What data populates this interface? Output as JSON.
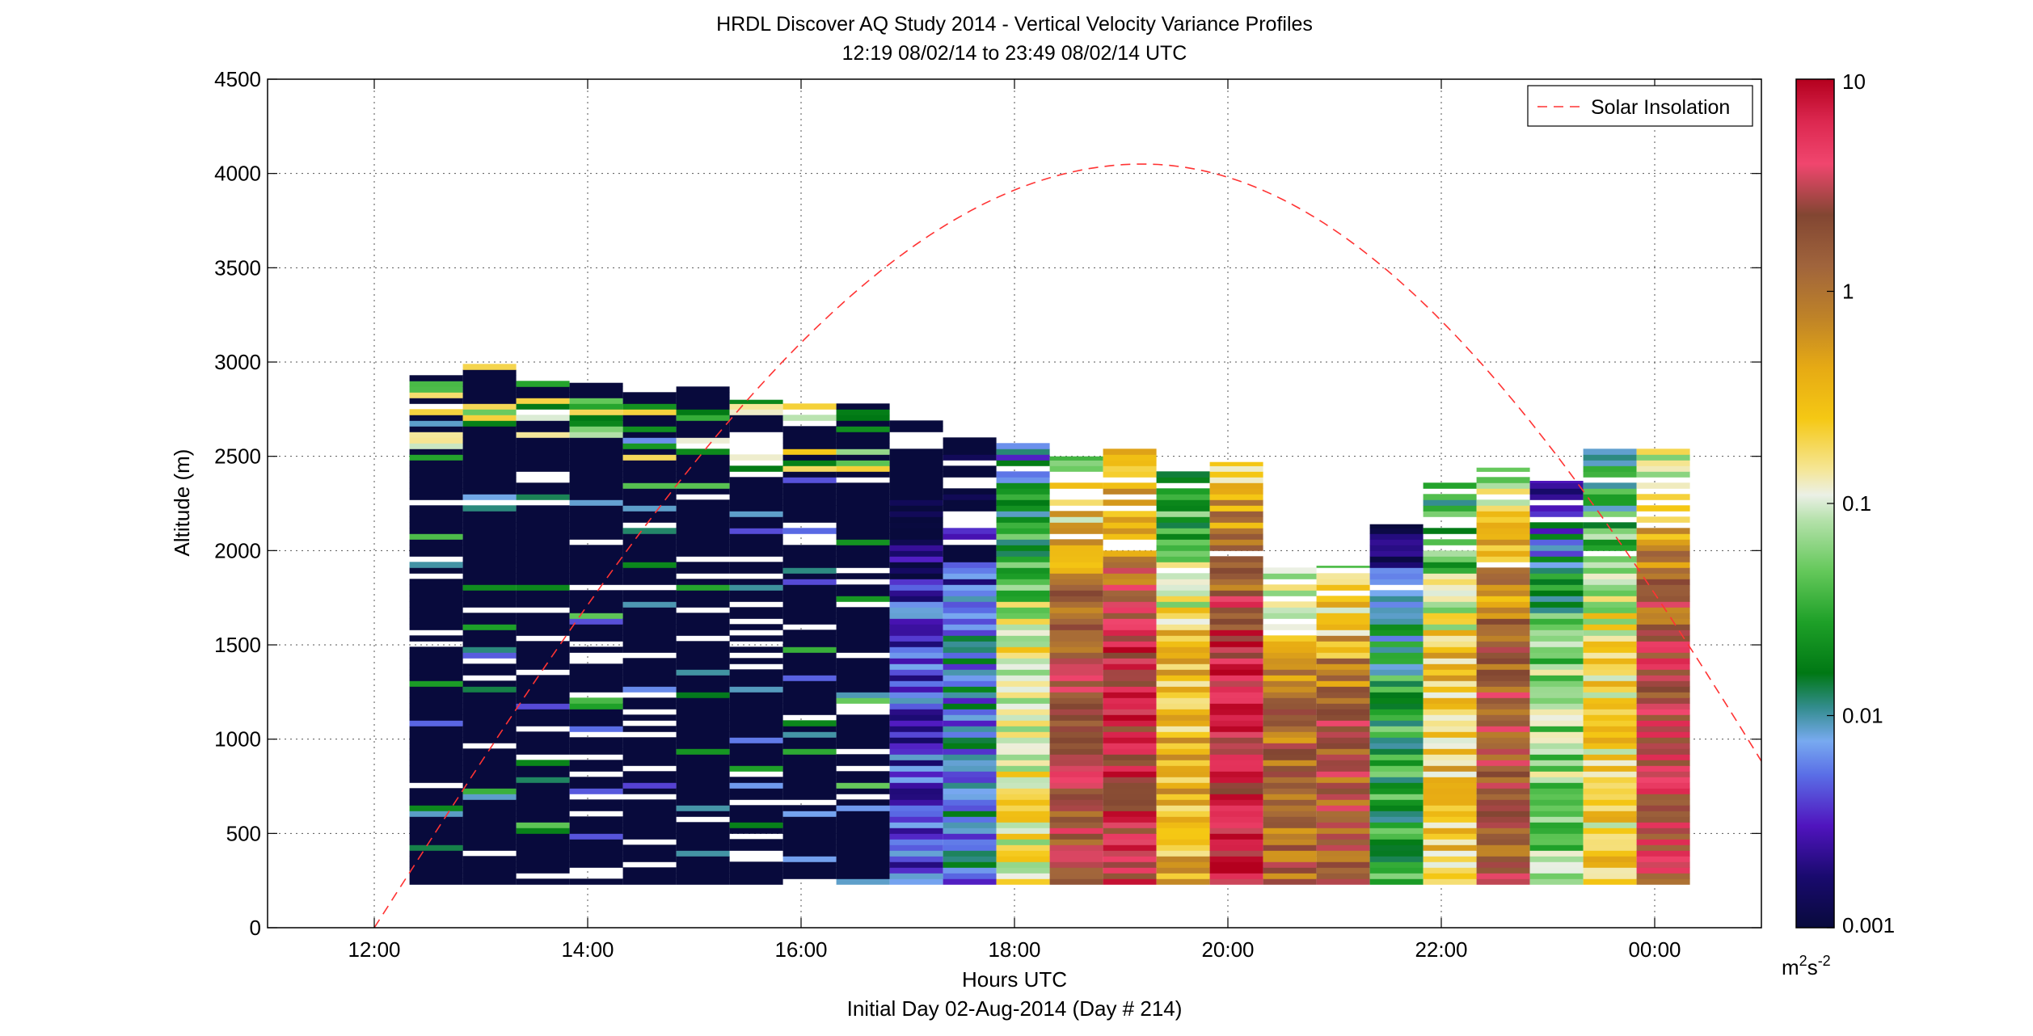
{
  "chart_data": {
    "type": "heatmap",
    "title": "HRDL Discover AQ Study 2014 - Vertical Velocity Variance Profiles",
    "subtitle": "12:19 08/02/14 to 23:49 08/02/14  UTC",
    "xlabel": "Hours UTC",
    "xlabel2": "Initial Day 02-Aug-2014 (Day # 214)",
    "ylabel": "Altitude (m)",
    "xlim": [
      11,
      25
    ],
    "ylim": [
      0,
      4500
    ],
    "x_ticks": [
      {
        "value": 12,
        "label": "12:00"
      },
      {
        "value": 14,
        "label": "14:00"
      },
      {
        "value": 16,
        "label": "16:00"
      },
      {
        "value": 18,
        "label": "18:00"
      },
      {
        "value": 20,
        "label": "20:00"
      },
      {
        "value": 22,
        "label": "22:00"
      },
      {
        "value": 24,
        "label": "00:00"
      }
    ],
    "y_ticks": [
      0,
      500,
      1000,
      1500,
      2000,
      2500,
      3000,
      3500,
      4000,
      4500
    ],
    "grid": true,
    "colorbar": {
      "scale": "log",
      "range": [
        0.001,
        10
      ],
      "ticks": [
        {
          "value": 0.001,
          "label": "0.001"
        },
        {
          "value": 0.01,
          "label": "0.01"
        },
        {
          "value": 0.1,
          "label": "0.1"
        },
        {
          "value": 1,
          "label": "1"
        },
        {
          "value": 10,
          "label": "10"
        }
      ],
      "unit_base": "m",
      "unit_exp1": "2",
      "unit_mid": "s",
      "unit_exp2": "-2"
    },
    "legend": {
      "placement": "top-right",
      "entries": [
        {
          "name": "Solar Insolation",
          "color": "#ff3333",
          "style": "dashed"
        }
      ]
    },
    "profile_times": [
      12.58,
      13.08,
      13.58,
      14.08,
      14.58,
      15.08,
      15.58,
      16.08,
      16.58,
      17.08,
      17.58,
      18.08,
      18.58,
      19.08,
      19.58,
      20.08,
      20.58,
      21.08,
      21.58,
      22.08,
      22.58,
      23.08,
      23.58,
      24.08
    ],
    "profile_tops_m": [
      2930,
      2990,
      2900,
      2890,
      2850,
      2870,
      2800,
      2780,
      2780,
      2690,
      2600,
      2600,
      2500,
      2540,
      2420,
      2470,
      1910,
      1920,
      2140,
      2380,
      2440,
      2370,
      2540,
      2540
    ],
    "profile_bottom_m": 230,
    "dominant_log10_variance": [
      -3.0,
      -3.0,
      -3.0,
      -3.0,
      -3.0,
      -3.0,
      -3.0,
      -3.0,
      -3.0,
      -2.4,
      -2.1,
      -0.9,
      0.3,
      0.6,
      -0.5,
      0.7,
      0.1,
      0.2,
      -1.6,
      -0.6,
      0.2,
      -1.2,
      -0.7,
      0.4
    ],
    "solar_insolation_curve": {
      "x_start": 12.0,
      "x_peak": 19.2,
      "x_end": 25.0,
      "y_peak_m": 4050
    }
  },
  "colors": {
    "background": "#ffffff",
    "axes": "#000000",
    "grid": "#555555",
    "solar_curve": "#ff3333",
    "no_data": "#ffffff"
  }
}
